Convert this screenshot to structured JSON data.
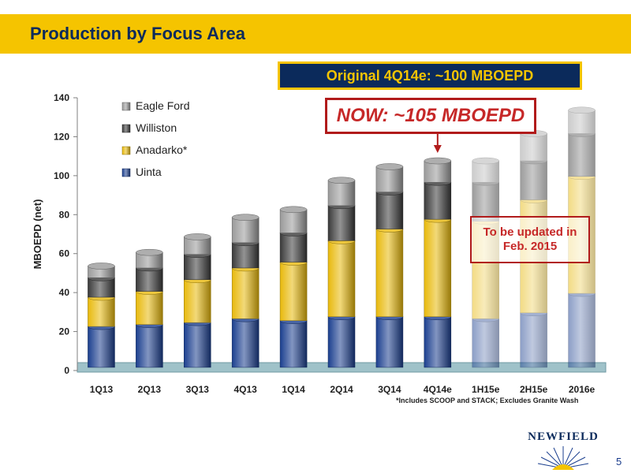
{
  "slide": {
    "title": "Production by Focus Area",
    "page_number": "5",
    "logo_text": "NEWFIELD"
  },
  "callouts": {
    "original": "Original 4Q14e: ~100 MBOEPD",
    "now": "NOW: ~105 MBOEPD",
    "update_note": "To be updated in Feb. 2015",
    "footnote": "*Includes SCOOP and STACK; Excludes Granite Wash"
  },
  "colors": {
    "header": "#f5c400",
    "navy": "#0b2a5b",
    "red": "#b11b1b",
    "uinta": "#1b3f8f",
    "anadarko": "#e8b90c",
    "williston": "#3a3a3a",
    "eagle_ford": "#9a9a9a"
  },
  "chart_data": {
    "type": "bar",
    "stacked": true,
    "ylabel": "MBOEPD (net)",
    "xlabel": "",
    "ylim": [
      0,
      140
    ],
    "yticks": [
      0,
      20,
      40,
      60,
      80,
      100,
      120,
      140
    ],
    "categories": [
      "1Q13",
      "2Q13",
      "3Q13",
      "4Q13",
      "1Q14",
      "2Q14",
      "3Q14",
      "4Q14e",
      "1H15e",
      "2H15e",
      "2016e"
    ],
    "estimate_start_index": 8,
    "legend_position": "top-left",
    "series": [
      {
        "name": "Uinta",
        "color": "#1b3f8f",
        "values": [
          21,
          22,
          23,
          25,
          24,
          26,
          26,
          26,
          25,
          28,
          38
        ]
      },
      {
        "name": "Anadarko*",
        "color": "#e8b90c",
        "values": [
          15,
          17,
          22,
          26,
          30,
          39,
          45,
          50,
          50,
          58,
          60
        ]
      },
      {
        "name": "Williston",
        "color": "#3a3a3a",
        "values": [
          10,
          12,
          13,
          13,
          15,
          18,
          19,
          19,
          20,
          20,
          22
        ]
      },
      {
        "name": "Eagle Ford",
        "color": "#9a9a9a",
        "values": [
          6,
          8,
          9,
          13,
          12,
          13,
          13,
          11,
          11,
          14,
          12
        ]
      }
    ],
    "legend_order": [
      "Eagle Ford",
      "Williston",
      "Anadarko*",
      "Uinta"
    ]
  }
}
